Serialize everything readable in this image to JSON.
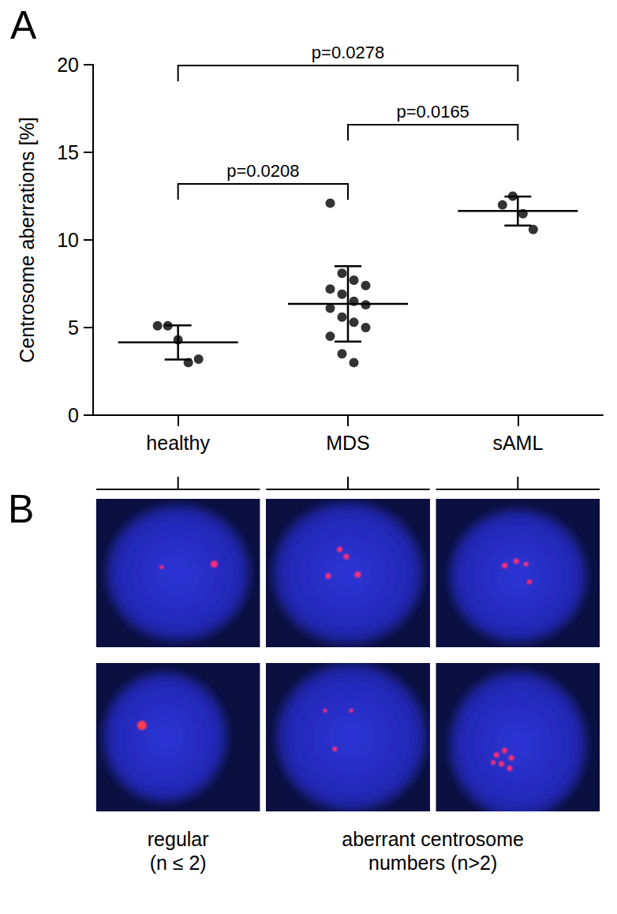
{
  "chart_data": {
    "type": "scatter",
    "panel_label": "A",
    "y_label": "Centrosome aberrations [%]",
    "categories": [
      "healthy",
      "MDS",
      "sAML"
    ],
    "values": [
      [
        5.1,
        5.1,
        4.3,
        3.0,
        3.2
      ],
      [
        12.1,
        8.1,
        7.7,
        7.4,
        7.2,
        6.9,
        6.5,
        6.3,
        6.1,
        5.6,
        5.3,
        5.0,
        4.5,
        3.5,
        3.0
      ],
      [
        12.0,
        12.5,
        11.5,
        10.6
      ]
    ],
    "mean": [
      4.15,
      6.35,
      11.65
    ],
    "sd": [
      0.97,
      2.15,
      0.83
    ],
    "color": "#000000",
    "marker": "circle",
    "ylim": [
      0,
      20
    ],
    "yticks": [
      0,
      5,
      10,
      15,
      20
    ],
    "grid": false,
    "annotations": [
      {
        "from": "healthy",
        "to": "sAML",
        "label": "p=0.0278"
      },
      {
        "from": "MDS",
        "to": "sAML",
        "label": "p=0.0165"
      },
      {
        "from": "healthy",
        "to": "MDS",
        "label": "p=0.0208"
      }
    ]
  },
  "panel_b": {
    "label": "B",
    "captions": [
      {
        "columns": [
          "healthy"
        ],
        "lines": [
          "regular",
          "(n ≤ 2)"
        ]
      },
      {
        "columns": [
          "MDS",
          "sAML"
        ],
        "lines": [
          "aberrant centrosome",
          "numbers (n>2)"
        ]
      }
    ]
  }
}
